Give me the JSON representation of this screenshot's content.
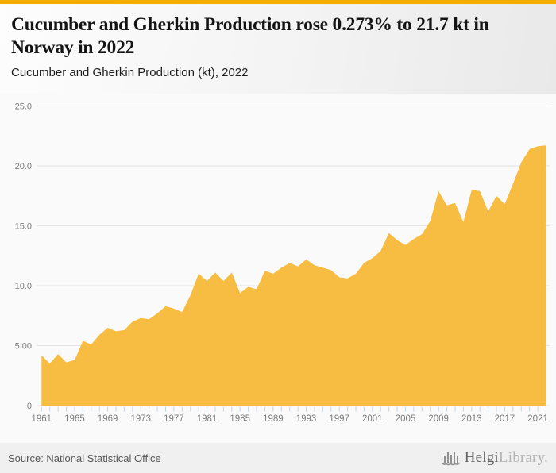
{
  "header": {
    "title": "Cucumber and Gherkin Production rose 0.273% to 21.7 kt in Norway in 2022",
    "subtitle": "Cucumber and Gherkin Production (kt), 2022"
  },
  "footer": {
    "source": "Source: National Statistical Office",
    "logo": {
      "icon": "bar-chart-building-icon",
      "text_primary": "Helgi",
      "text_secondary": "Library."
    }
  },
  "theme": {
    "accent_bar": "#f5ad00",
    "area_fill": "#f7bc42",
    "grid_color": "#e3e3e3",
    "axis_tick_color": "#c8d2df",
    "axis_label_color": "#7d7d7d",
    "title_color": "#141414",
    "footer_bg": "#f0f0f0",
    "logo_gray": "#8f8f8f"
  },
  "chart_data": {
    "type": "area",
    "title": "Cucumber and Gherkin Production (kt), 2022",
    "xlabel": "",
    "ylabel": "",
    "unit": "kt",
    "grid": true,
    "legend_position": "none",
    "ylim": [
      0,
      25
    ],
    "ytick_values": [
      0,
      5,
      10,
      15,
      20,
      25
    ],
    "ytick_labels": [
      "0",
      "5.00",
      "10.0",
      "15.0",
      "20.0",
      "25.0"
    ],
    "xtick_labeled_years": [
      1961,
      1965,
      1969,
      1973,
      1977,
      1981,
      1985,
      1989,
      1993,
      1997,
      2001,
      2005,
      2009,
      2013,
      2017,
      2021
    ],
    "x": [
      1961,
      1962,
      1963,
      1964,
      1965,
      1966,
      1967,
      1968,
      1969,
      1970,
      1971,
      1972,
      1973,
      1974,
      1975,
      1976,
      1977,
      1978,
      1979,
      1980,
      1981,
      1982,
      1983,
      1984,
      1985,
      1986,
      1987,
      1988,
      1989,
      1990,
      1991,
      1992,
      1993,
      1994,
      1995,
      1996,
      1997,
      1998,
      1999,
      2000,
      2001,
      2002,
      2003,
      2004,
      2005,
      2006,
      2007,
      2008,
      2009,
      2010,
      2011,
      2012,
      2013,
      2014,
      2015,
      2016,
      2017,
      2018,
      2019,
      2020,
      2021,
      2022
    ],
    "values": [
      4.2,
      3.5,
      4.3,
      3.6,
      3.8,
      5.4,
      5.1,
      5.9,
      6.5,
      6.2,
      6.3,
      7.0,
      7.3,
      7.2,
      7.7,
      8.3,
      8.1,
      7.8,
      9.2,
      11.0,
      10.4,
      11.1,
      10.4,
      11.1,
      9.4,
      9.9,
      9.7,
      11.25,
      11.0,
      11.5,
      11.9,
      11.6,
      12.2,
      11.7,
      11.5,
      11.3,
      10.7,
      10.6,
      11.0,
      11.9,
      12.3,
      12.9,
      14.4,
      13.8,
      13.4,
      13.9,
      14.3,
      15.4,
      17.9,
      16.7,
      16.9,
      15.3,
      18.0,
      17.9,
      16.2,
      17.5,
      16.8,
      18.5,
      20.3,
      21.4,
      21.64,
      21.7
    ]
  }
}
